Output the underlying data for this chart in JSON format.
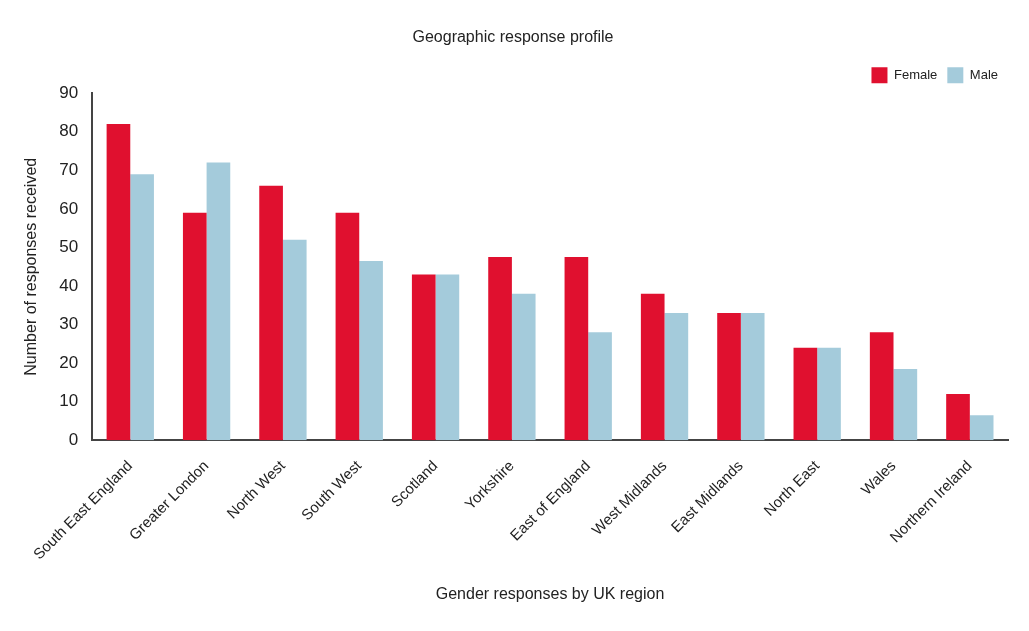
{
  "chart_data": {
    "type": "bar",
    "title": "Geographic response profile",
    "xlabel": "Gender responses by UK region",
    "ylabel": "Number of responses received",
    "categories": [
      "South East England",
      "Greater London",
      "North West",
      "South West",
      "Scotland",
      "Yorkshire",
      "East of England",
      "West Midlands",
      "East Midlands",
      "North East",
      "Wales",
      "Northern Ireland"
    ],
    "series": [
      {
        "name": "Female",
        "color": "#e0102f",
        "values": [
          82,
          59,
          66,
          59,
          43,
          47.5,
          47.5,
          38,
          33,
          24,
          28,
          12
        ]
      },
      {
        "name": "Male",
        "color": "#a4cbdb",
        "values": [
          69,
          72,
          52,
          46.5,
          43,
          38,
          28,
          33,
          33,
          24,
          18.5,
          6.5
        ]
      }
    ],
    "ylim": [
      0,
      90
    ],
    "yticks": [
      0,
      10,
      20,
      30,
      40,
      50,
      60,
      70,
      80,
      90
    ],
    "grid": false,
    "legend": "top right"
  }
}
